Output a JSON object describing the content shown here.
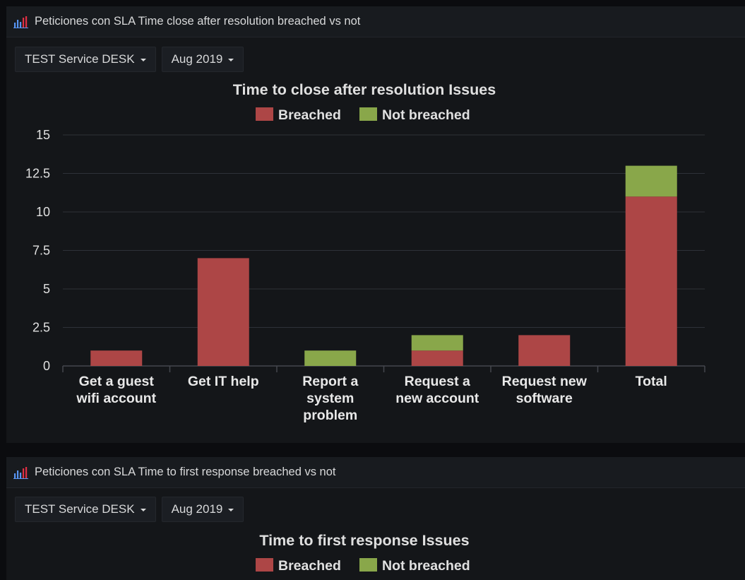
{
  "colors": {
    "breached": "#ad4646",
    "not_breached": "#89a74a",
    "grid": "#2e3138",
    "axis": "#44474e"
  },
  "panels": [
    {
      "title": "Peticiones con SLA Time close after resolution breached vs not",
      "icon": "bar-chart-icon",
      "dropdowns": [
        {
          "label": "TEST Service DESK"
        },
        {
          "label": "Aug 2019"
        }
      ]
    },
    {
      "title": "Peticiones con SLA Time to first response breached vs not",
      "icon": "bar-chart-icon",
      "dropdowns": [
        {
          "label": "TEST Service DESK"
        },
        {
          "label": "Aug 2019"
        }
      ]
    }
  ],
  "chart_data": [
    {
      "type": "bar",
      "stacked": true,
      "title": "Time to close after resolution Issues",
      "legend": [
        "Breached",
        "Not breached"
      ],
      "legend_position": "top",
      "categories": [
        [
          "Get a guest",
          "wifi account"
        ],
        [
          "Get IT help"
        ],
        [
          "Report a",
          "system",
          "problem"
        ],
        [
          "Request a",
          "new account"
        ],
        [
          "Request new",
          "software"
        ],
        [
          "Total"
        ]
      ],
      "series": [
        {
          "name": "Breached",
          "values": [
            1,
            7,
            0,
            1,
            2,
            11
          ]
        },
        {
          "name": "Not breached",
          "values": [
            0,
            0,
            1,
            1,
            0,
            2
          ]
        }
      ],
      "ylim": [
        0,
        15
      ],
      "yticks": [
        "0",
        "2.5",
        "5",
        "7.5",
        "10",
        "12.5",
        "15"
      ],
      "grid": true
    },
    {
      "type": "bar",
      "stacked": true,
      "title": "Time to first response Issues",
      "legend": [
        "Breached",
        "Not breached"
      ],
      "legend_position": "top"
    }
  ]
}
